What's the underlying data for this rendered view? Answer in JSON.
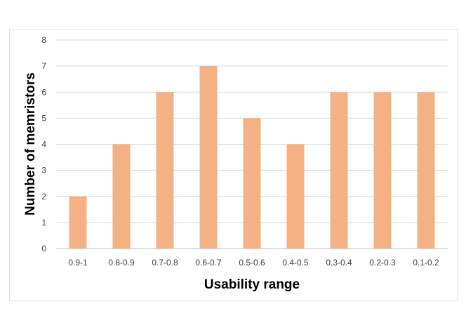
{
  "chart_data": {
    "type": "bar",
    "title": "",
    "xlabel": "Usability range",
    "ylabel": "Number of memristors",
    "categories": [
      "0.9-1",
      "0.8-0.9",
      "0.7-0.8",
      "0.6-0.7",
      "0.5-0.6",
      "0.4-0.5",
      "0.3-0.4",
      "0.2-0.3",
      "0.1-0.2"
    ],
    "values": [
      2,
      4,
      6,
      7,
      5,
      4,
      6,
      6,
      6
    ],
    "yticks": [
      "0",
      "1",
      "2",
      "3",
      "4",
      "5",
      "6",
      "7",
      "8"
    ],
    "ylim": [
      0,
      8
    ],
    "grid": true,
    "legend": "none",
    "colors": {
      "bar": "#F4B183",
      "grid": "#d9d9d9",
      "axis": "#bfbfbf"
    }
  }
}
